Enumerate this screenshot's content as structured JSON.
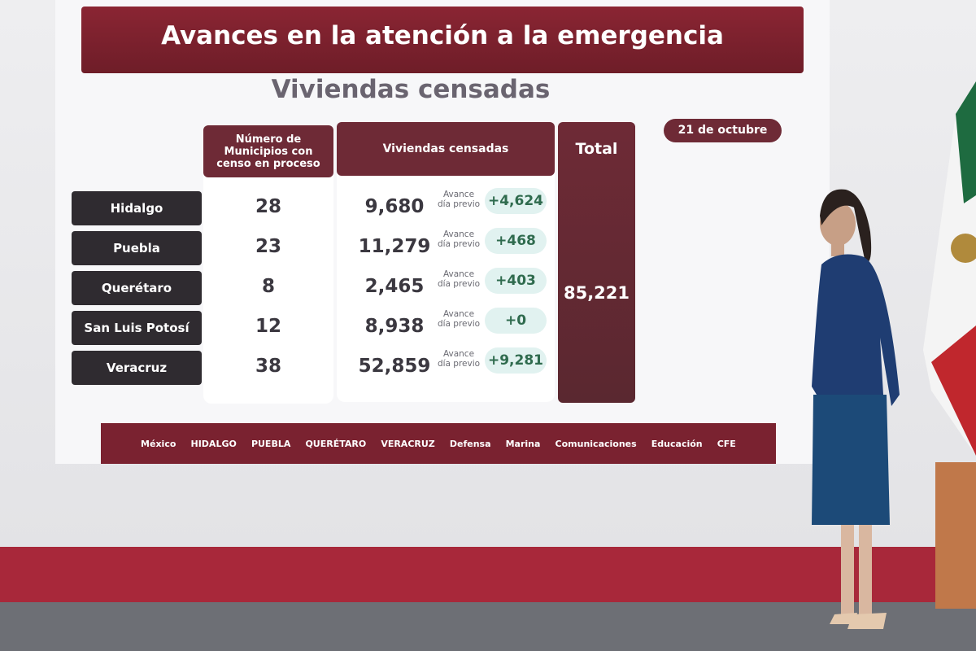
{
  "header": {
    "title": "Avances en la atención a la emergencia",
    "subtitle": "Viviendas censadas",
    "date": "21 de octubre"
  },
  "table": {
    "columns": [
      "Número de Municipios con censo en proceso",
      "Viviendas censadas",
      "Total"
    ],
    "avance_label": "Avance día previo",
    "rows": [
      [
        "Hidalgo",
        "28",
        "9,680",
        "+4,624"
      ],
      [
        "Puebla",
        "23",
        "11,279",
        "+468"
      ],
      [
        "Querétaro",
        "8",
        "2,465",
        "+403"
      ],
      [
        "San Luis Potosí",
        "12",
        "8,938",
        "+0"
      ],
      [
        "Veracruz",
        "38",
        "52,859",
        "+9,281"
      ]
    ],
    "total": "85,221"
  },
  "footer": {
    "logos": [
      "México",
      "HIDALGO",
      "PUEBLA",
      "QUERÉTARO",
      "VERACRUZ",
      "Defensa",
      "Marina",
      "Comunicaciones",
      "Educación",
      "CFE"
    ]
  }
}
